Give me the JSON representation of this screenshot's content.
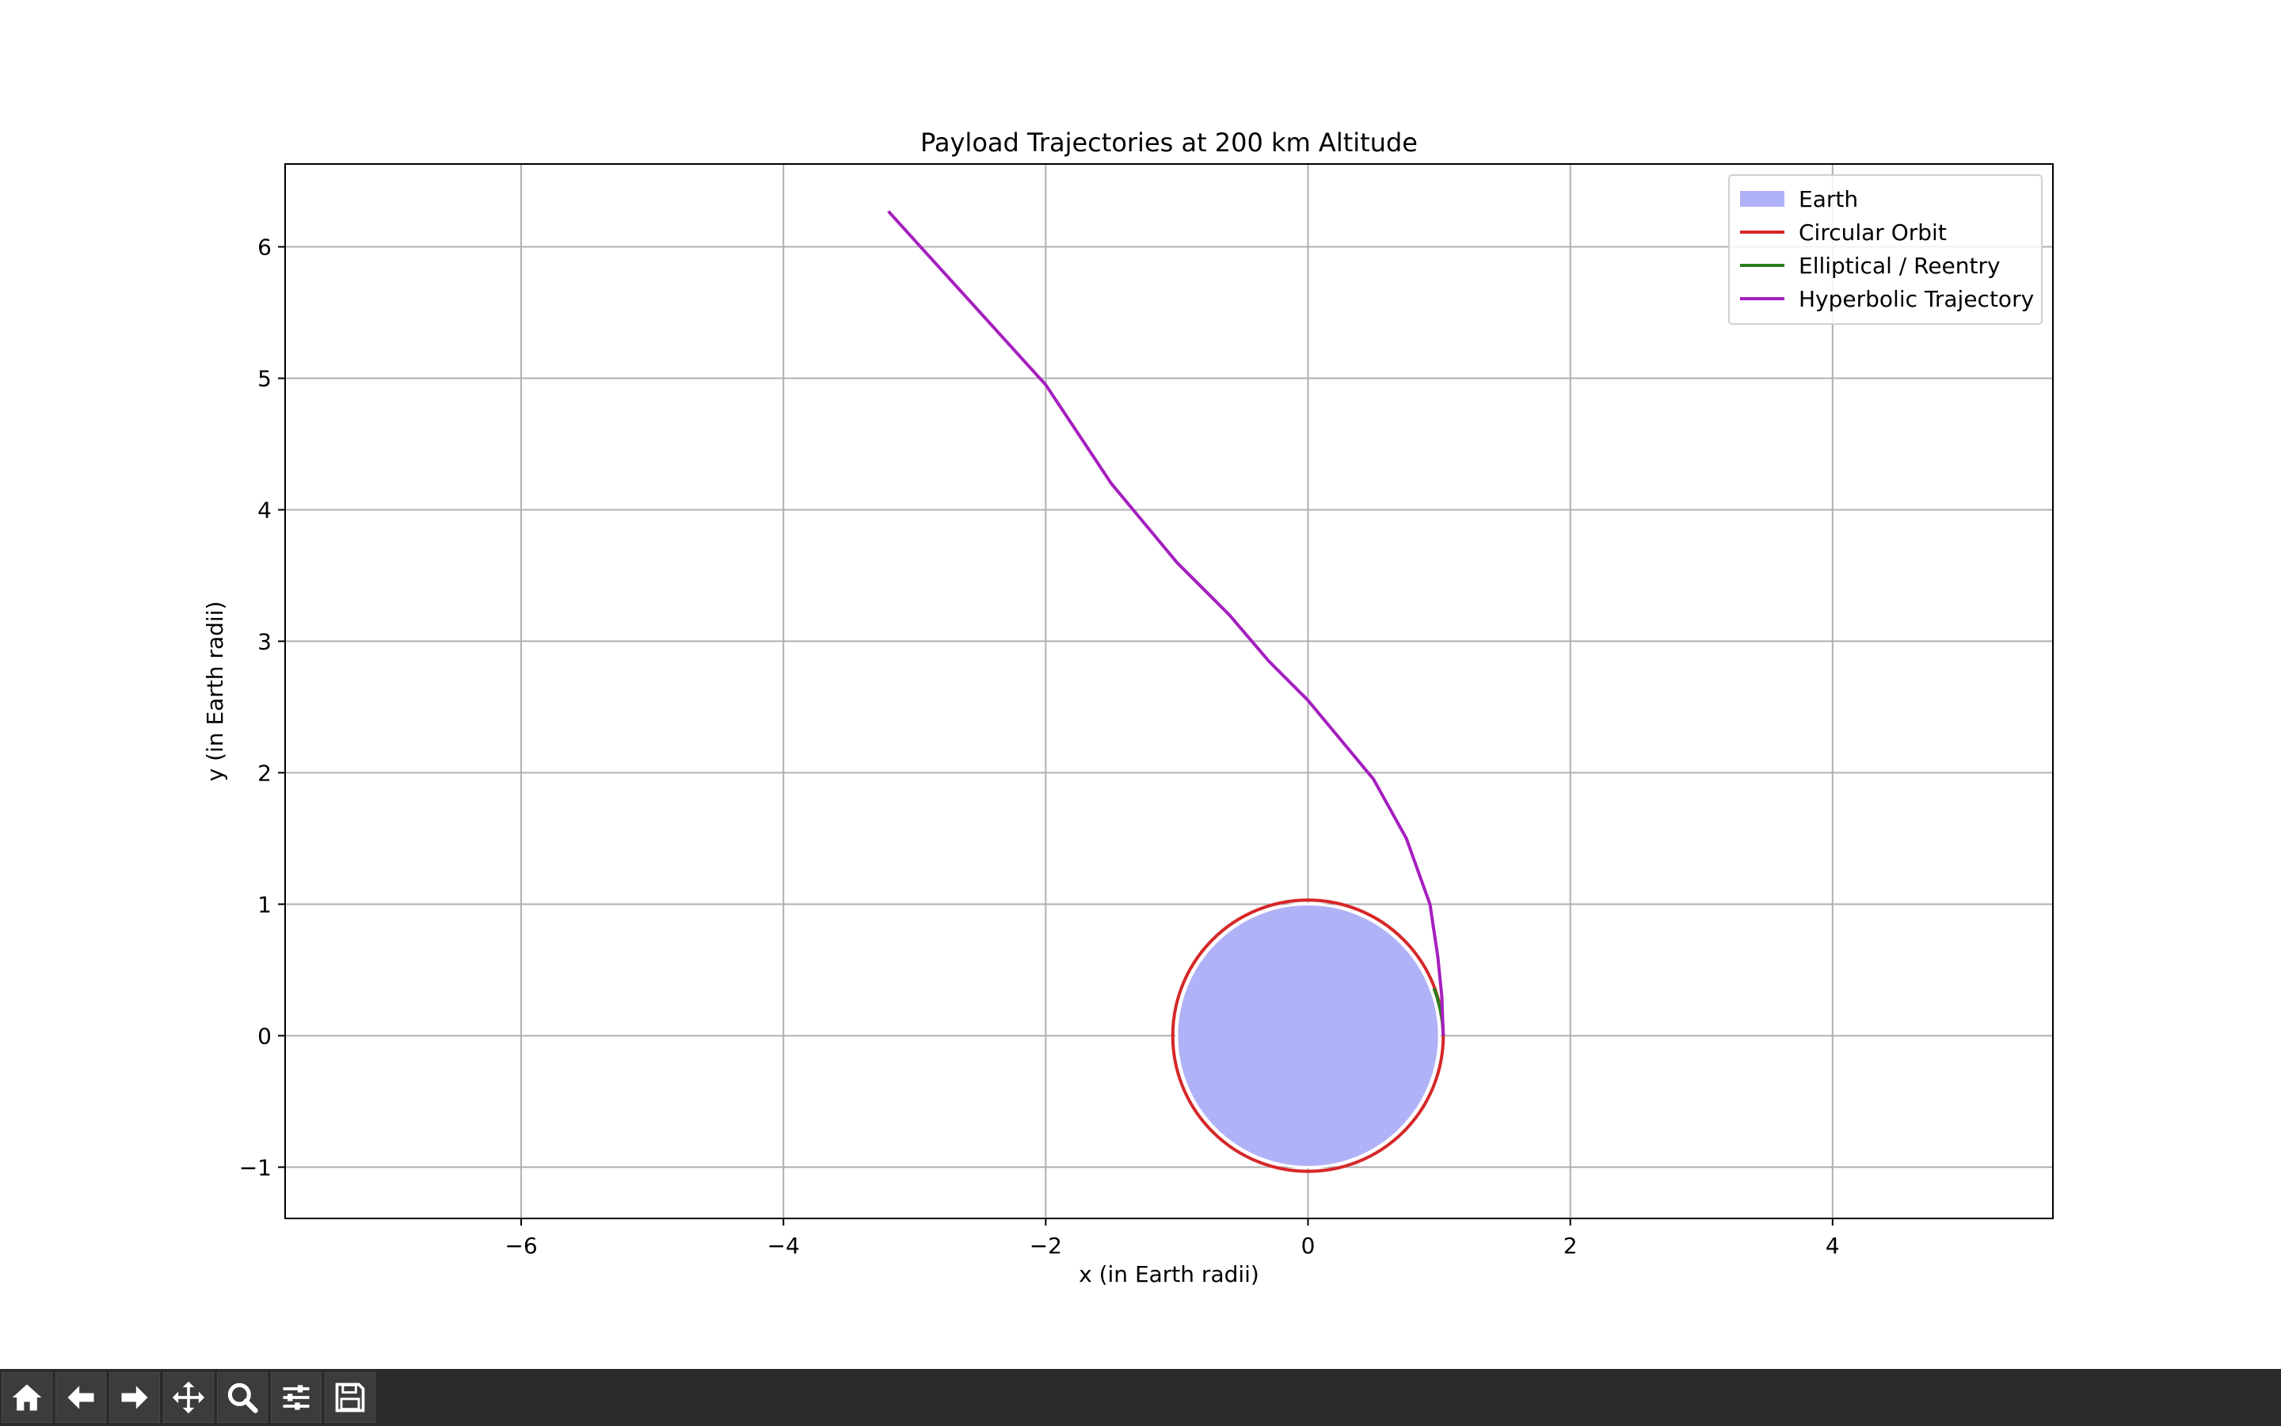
{
  "chart_data": {
    "type": "line",
    "title": "Payload Trajectories at 200 km Altitude",
    "xlabel": "x (in Earth radii)",
    "ylabel": "y (in Earth radii)",
    "xlim": [
      -7.8,
      5.68
    ],
    "ylim": [
      -1.39,
      6.63
    ],
    "xticks": [
      -6,
      -4,
      -2,
      0,
      2,
      4
    ],
    "yticks": [
      -1,
      0,
      1,
      2,
      3,
      4,
      5,
      6
    ],
    "xtick_labels": [
      "−6",
      "−4",
      "−2",
      "0",
      "2",
      "4"
    ],
    "ytick_labels": [
      "−1",
      "0",
      "1",
      "2",
      "3",
      "4",
      "5",
      "6"
    ],
    "grid": true,
    "legend_position": "top-right",
    "earth": {
      "name": "Earth",
      "center": [
        0,
        0
      ],
      "radius": 1.0,
      "color": "#b0b2f8"
    },
    "series": [
      {
        "name": "Circular Orbit",
        "color": "#d62728",
        "kind": "circle",
        "center": [
          0,
          0
        ],
        "radius": 1.0314
      },
      {
        "name": "Elliptical / Reentry",
        "color": "#2c7d1f",
        "kind": "polyline",
        "points": [
          [
            1.0314,
            0.0
          ],
          [
            1.025,
            0.1
          ],
          [
            1.008,
            0.2
          ],
          [
            0.985,
            0.29
          ],
          [
            0.96,
            0.36
          ]
        ]
      },
      {
        "name": "Hyperbolic Trajectory",
        "color": "#a51fbf",
        "kind": "polyline",
        "points": [
          [
            1.0314,
            0.0
          ],
          [
            1.02,
            0.3
          ],
          [
            0.99,
            0.6
          ],
          [
            0.93,
            1.0
          ],
          [
            0.75,
            1.5
          ],
          [
            0.5,
            1.95
          ],
          [
            0.25,
            2.25
          ],
          [
            0.0,
            2.55
          ],
          [
            -0.3,
            2.85
          ],
          [
            -0.6,
            3.2
          ],
          [
            -1.0,
            3.6
          ],
          [
            -1.5,
            4.2
          ],
          [
            -2.0,
            4.95
          ],
          [
            -2.5,
            5.5
          ],
          [
            -3.0,
            6.05
          ],
          [
            -3.2,
            6.27
          ]
        ]
      }
    ]
  },
  "toolbar": {
    "buttons": [
      {
        "name": "home-button",
        "icon": "home-icon"
      },
      {
        "name": "back-button",
        "icon": "arrow-left-icon"
      },
      {
        "name": "forward-button",
        "icon": "arrow-right-icon"
      },
      {
        "name": "pan-button",
        "icon": "move-icon"
      },
      {
        "name": "zoom-button",
        "icon": "magnifier-icon"
      },
      {
        "name": "configure-subplots-button",
        "icon": "sliders-icon"
      },
      {
        "name": "save-button",
        "icon": "floppy-disk-icon"
      }
    ]
  }
}
